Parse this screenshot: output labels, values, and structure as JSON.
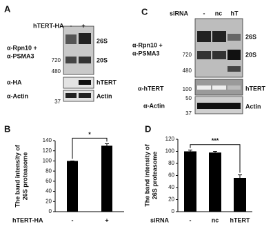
{
  "panels": {
    "A": {
      "letter": "A",
      "header": "hTERT-HA",
      "lanes": [
        "-",
        "+"
      ],
      "probe1": "α-Rpn10 +",
      "probe2": "α-PSMA3",
      "band_26s": "26S",
      "band_20s": "20S",
      "mw": [
        "720",
        "480",
        "37"
      ],
      "probe_ha": "α-HA",
      "band_htert": "hTERT",
      "probe_actin": "α-Actin",
      "band_actin": "Actin"
    },
    "B": {
      "letter": "B"
    },
    "C": {
      "letter": "C",
      "header": "siRNA",
      "lanes": [
        "-",
        "nc",
        "hT"
      ],
      "probe1": "α-Rpn10 +",
      "probe2": "α-PSMA3",
      "band_26s": "26S",
      "band_20s": "20S",
      "mw": [
        "720",
        "480",
        "100",
        "50",
        "37"
      ],
      "probe_htert": "α-hTERT",
      "band_htert": "hTERT",
      "probe_actin": "α-Actin",
      "band_actin": "Actin"
    },
    "D": {
      "letter": "D"
    }
  },
  "chart_data": [
    {
      "type": "bar",
      "ylabel": [
        "The band intensity of",
        "26S proteasome"
      ],
      "xlabel": "hTERT-HA",
      "categories": [
        "-",
        "+"
      ],
      "values": [
        100,
        130
      ],
      "errors": [
        0,
        4
      ],
      "color": "#000000",
      "ylim": [
        0,
        140
      ],
      "yticks": [
        0,
        20,
        40,
        60,
        80,
        100,
        120,
        140
      ],
      "annotation": "*"
    },
    {
      "type": "bar",
      "ylabel": [
        "The band intensity of",
        "26S proteasome"
      ],
      "xlabel": "siRNA",
      "categories": [
        "-",
        "nc",
        "hTERT"
      ],
      "values": [
        100,
        98,
        56
      ],
      "errors": [
        2,
        2,
        5
      ],
      "color": "#000000",
      "ylim": [
        0,
        120
      ],
      "yticks": [
        0,
        20,
        40,
        60,
        80,
        100,
        120
      ],
      "annotation": "***"
    }
  ]
}
